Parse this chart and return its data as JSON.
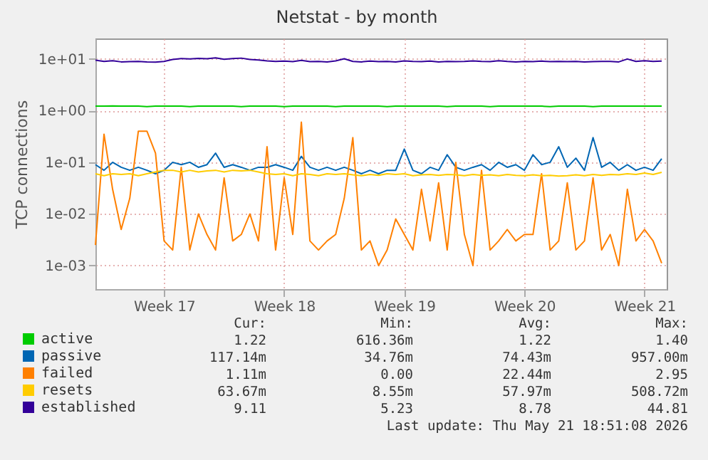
{
  "chart_data": {
    "type": "line",
    "title": "Netstat - by month",
    "ylabel": "TCP connections",
    "x": [
      "2026-04-18T12:00",
      "2026-04-19T00:00",
      "2026-04-19T12:00",
      "2026-04-20T00:00",
      "2026-04-20T12:00",
      "2026-04-21T00:00",
      "2026-04-21T12:00",
      "2026-04-22T00:00",
      "2026-04-22T12:00",
      "2026-04-23T00:00",
      "2026-04-23T12:00",
      "2026-04-24T00:00",
      "2026-04-24T12:00",
      "2026-04-25T00:00",
      "2026-04-25T12:00",
      "2026-04-26T00:00",
      "2026-04-26T12:00",
      "2026-04-27T00:00",
      "2026-04-27T12:00",
      "2026-04-28T00:00",
      "2026-04-28T12:00",
      "2026-04-29T00:00",
      "2026-04-29T12:00",
      "2026-04-30T00:00",
      "2026-04-30T12:00",
      "2026-05-01T00:00",
      "2026-05-01T12:00",
      "2026-05-02T00:00",
      "2026-05-02T12:00",
      "2026-05-03T00:00",
      "2026-05-03T12:00",
      "2026-05-04T00:00",
      "2026-05-04T12:00",
      "2026-05-05T00:00",
      "2026-05-05T12:00",
      "2026-05-06T00:00",
      "2026-05-06T12:00",
      "2026-05-07T00:00",
      "2026-05-07T12:00",
      "2026-05-08T00:00",
      "2026-05-08T12:00",
      "2026-05-09T00:00",
      "2026-05-09T12:00",
      "2026-05-10T00:00",
      "2026-05-10T12:00",
      "2026-05-11T00:00",
      "2026-05-11T12:00",
      "2026-05-12T00:00",
      "2026-05-12T12:00",
      "2026-05-13T00:00",
      "2026-05-13T12:00",
      "2026-05-14T00:00",
      "2026-05-14T12:00",
      "2026-05-15T00:00",
      "2026-05-15T12:00",
      "2026-05-16T00:00",
      "2026-05-16T12:00",
      "2026-05-17T00:00",
      "2026-05-17T12:00",
      "2026-05-18T00:00",
      "2026-05-18T12:00",
      "2026-05-19T00:00",
      "2026-05-19T12:00",
      "2026-05-20T00:00",
      "2026-05-20T12:00",
      "2026-05-21T00:00",
      "2026-05-21T12:00"
    ],
    "series": [
      {
        "name": "active",
        "color": "#00cc00",
        "values": [
          1.22,
          1.22,
          1.23,
          1.22,
          1.22,
          1.22,
          1.2,
          1.22,
          1.22,
          1.22,
          1.22,
          1.2,
          1.22,
          1.22,
          1.22,
          1.22,
          1.22,
          1.2,
          1.22,
          1.22,
          1.22,
          1.22,
          1.2,
          1.22,
          1.22,
          1.22,
          1.22,
          1.22,
          1.2,
          1.22,
          1.22,
          1.22,
          1.22,
          1.22,
          1.2,
          1.22,
          1.22,
          1.22,
          1.22,
          1.22,
          1.22,
          1.2,
          1.22,
          1.22,
          1.22,
          1.22,
          1.2,
          1.22,
          1.22,
          1.22,
          1.22,
          1.22,
          1.22,
          1.2,
          1.22,
          1.22,
          1.22,
          1.22,
          1.2,
          1.22,
          1.22,
          1.22,
          1.22,
          1.22,
          1.22,
          1.22,
          1.22
        ]
      },
      {
        "name": "passive",
        "color": "#0066b3",
        "values": [
          0.09,
          0.07,
          0.1,
          0.08,
          0.07,
          0.08,
          0.07,
          0.06,
          0.07,
          0.1,
          0.09,
          0.1,
          0.08,
          0.09,
          0.15,
          0.08,
          0.09,
          0.08,
          0.07,
          0.08,
          0.08,
          0.09,
          0.08,
          0.07,
          0.13,
          0.08,
          0.07,
          0.08,
          0.07,
          0.08,
          0.07,
          0.06,
          0.07,
          0.06,
          0.07,
          0.07,
          0.18,
          0.07,
          0.06,
          0.08,
          0.07,
          0.14,
          0.08,
          0.07,
          0.08,
          0.09,
          0.07,
          0.1,
          0.08,
          0.09,
          0.07,
          0.14,
          0.09,
          0.1,
          0.2,
          0.08,
          0.12,
          0.07,
          0.3,
          0.08,
          0.1,
          0.07,
          0.09,
          0.07,
          0.08,
          0.07,
          0.117
        ]
      },
      {
        "name": "failed",
        "color": "#ff8000",
        "values": [
          0.0025,
          0.35,
          0.03,
          0.005,
          0.02,
          0.4,
          0.4,
          0.15,
          0.003,
          0.002,
          0.08,
          0.002,
          0.01,
          0.004,
          0.002,
          0.05,
          0.003,
          0.004,
          0.01,
          0.003,
          0.2,
          0.002,
          0.05,
          0.004,
          0.6,
          0.003,
          0.002,
          0.003,
          0.004,
          0.02,
          0.3,
          0.002,
          0.003,
          0.001,
          0.002,
          0.008,
          0.004,
          0.002,
          0.03,
          0.003,
          0.04,
          0.002,
          0.1,
          0.004,
          0.001,
          0.07,
          0.002,
          0.003,
          0.005,
          0.003,
          0.004,
          0.004,
          0.06,
          0.002,
          0.003,
          0.04,
          0.002,
          0.003,
          0.05,
          0.002,
          0.004,
          0.001,
          0.03,
          0.003,
          0.005,
          0.003,
          0.00111
        ]
      },
      {
        "name": "resets",
        "color": "#ffcc00",
        "values": [
          0.06,
          0.055,
          0.06,
          0.058,
          0.06,
          0.055,
          0.06,
          0.065,
          0.07,
          0.07,
          0.065,
          0.07,
          0.065,
          0.068,
          0.07,
          0.065,
          0.07,
          0.068,
          0.07,
          0.065,
          0.06,
          0.058,
          0.06,
          0.055,
          0.06,
          0.058,
          0.055,
          0.06,
          0.058,
          0.06,
          0.057,
          0.055,
          0.058,
          0.056,
          0.06,
          0.058,
          0.06,
          0.055,
          0.057,
          0.058,
          0.056,
          0.058,
          0.057,
          0.055,
          0.058,
          0.056,
          0.057,
          0.055,
          0.058,
          0.056,
          0.055,
          0.057,
          0.055,
          0.056,
          0.054,
          0.055,
          0.057,
          0.055,
          0.058,
          0.056,
          0.058,
          0.057,
          0.06,
          0.058,
          0.062,
          0.058,
          0.064
        ]
      },
      {
        "name": "established",
        "color": "#330099",
        "values": [
          9.5,
          9.0,
          9.3,
          8.8,
          8.9,
          9.0,
          8.8,
          8.7,
          9.0,
          9.8,
          10.2,
          10.0,
          10.3,
          10.1,
          10.5,
          9.9,
          10.2,
          10.4,
          9.8,
          9.6,
          9.2,
          9.0,
          9.1,
          8.9,
          9.4,
          8.9,
          9.0,
          8.8,
          9.2,
          10.1,
          9.0,
          8.8,
          9.1,
          8.9,
          9.0,
          8.8,
          9.2,
          9.0,
          8.9,
          9.1,
          8.8,
          9.0,
          8.9,
          9.0,
          9.2,
          9.0,
          8.9,
          9.3,
          9.0,
          8.8,
          9.0,
          8.9,
          9.1,
          8.9,
          9.0,
          8.9,
          9.0,
          8.8,
          8.9,
          9.0,
          9.0,
          8.8,
          10.0,
          9.0,
          9.3,
          9.0,
          9.11
        ]
      }
    ],
    "xlim": [
      "2026-04-18T12:00",
      "2026-05-21T19:00"
    ],
    "xticks": [
      {
        "value": "2026-04-22T12:00",
        "label": "Week 17"
      },
      {
        "value": "2026-04-29T12:00",
        "label": "Week 18"
      },
      {
        "value": "2026-05-06T12:00",
        "label": "Week 19"
      },
      {
        "value": "2026-05-13T12:00",
        "label": "Week 20"
      },
      {
        "value": "2026-05-20T12:00",
        "label": "Week 21"
      }
    ],
    "ylim": [
      0.00035,
      25
    ],
    "yticks": [
      {
        "value": 0.001,
        "label": "1e-03"
      },
      {
        "value": 0.01,
        "label": "1e-02"
      },
      {
        "value": 0.1,
        "label": "1e-01"
      },
      {
        "value": 1,
        "label": "1e+00"
      },
      {
        "value": 10,
        "label": "1e+01"
      }
    ],
    "log": true,
    "grid": true,
    "legend": "bottom left",
    "annotations": [
      "Cur:",
      "Min:",
      "Avg:",
      "Max:",
      "1.22",
      "616.36m",
      "1.22",
      "1.40",
      "117.14m",
      "34.76m",
      "74.43m",
      "957.00m",
      "1.11m",
      "0.00",
      "22.44m",
      "2.95",
      "63.67m",
      "8.55m",
      "57.97m",
      "508.72m",
      "9.11",
      "5.23",
      "8.78",
      "44.81",
      "Last update: Thu May 21 18:51:08 2026"
    ]
  }
}
